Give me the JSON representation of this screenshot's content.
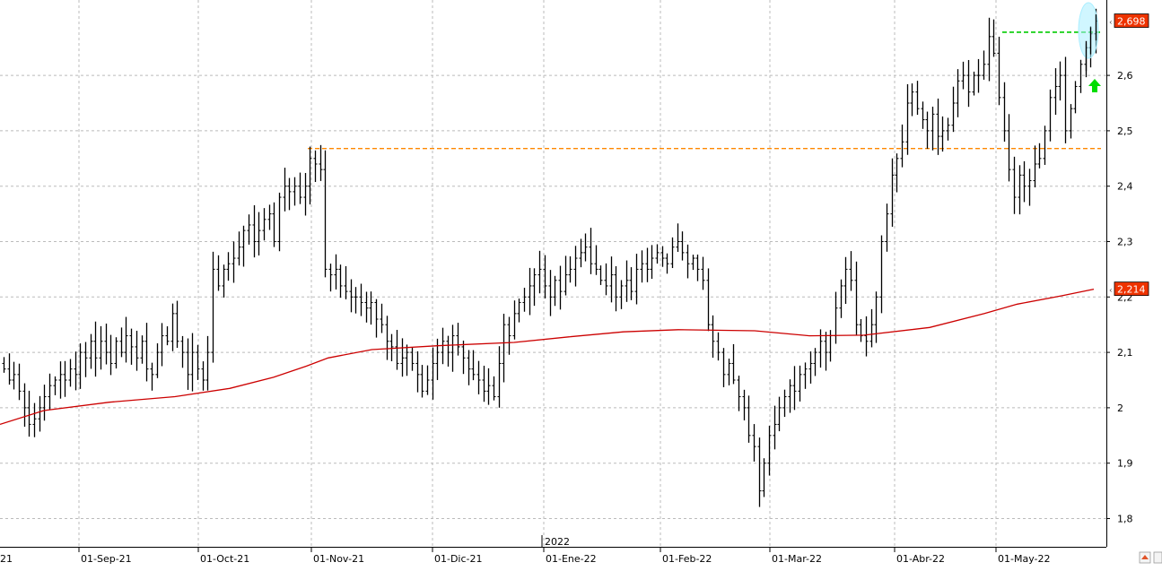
{
  "chart_data": {
    "type": "ohlc",
    "title": "",
    "xlabel": "",
    "ylabel": "",
    "ylim": [
      1.75,
      2.75
    ],
    "grid": true,
    "price_axis_side": "right",
    "y_ticks": [
      "1,8",
      "1,9",
      "2",
      "2,1",
      "2,2",
      "2,3",
      "2,4",
      "2,5",
      "2,6"
    ],
    "x_labels": [
      "01-Sep-21",
      "01-Oct-21",
      "01-Nov-21",
      "01-Dic-21",
      "01-Ene-22",
      "01-Feb-22",
      "01-Mar-22",
      "01-Abr-22",
      "01-May-22"
    ],
    "x_year_label": "2022",
    "start_partial_label": "21",
    "last_price": {
      "value": 2.698,
      "label": "2,698"
    },
    "ma_value": {
      "value": 2.214,
      "label": "2,214"
    },
    "resistance_green": 2.678,
    "resistance_orange": 2.468,
    "breakout_marker": "up-arrow",
    "series": [
      {
        "name": "",
        "kind": "ohlc",
        "closes": [
          2.07,
          2.05,
          2.06,
          2.03,
          2.0,
          1.97,
          1.98,
          2.0,
          2.02,
          2.04,
          2.05,
          2.06,
          2.05,
          2.07,
          2.06,
          2.1,
          2.09,
          2.12,
          2.09,
          2.12,
          2.1,
          2.08,
          2.12,
          2.1,
          2.13,
          2.11,
          2.09,
          2.12,
          2.07,
          2.06,
          2.1,
          2.13,
          2.12,
          2.17,
          2.12,
          2.1,
          2.06,
          2.1,
          2.07,
          2.05,
          2.1,
          2.25,
          2.22,
          2.25,
          2.26,
          2.27,
          2.29,
          2.32,
          2.33,
          2.3,
          2.32,
          2.34,
          2.35,
          2.3,
          2.38,
          2.4,
          2.39,
          2.4,
          2.38,
          2.4,
          2.45,
          2.44,
          2.43,
          2.25,
          2.24,
          2.25,
          2.22,
          2.21,
          2.2,
          2.2,
          2.19,
          2.18,
          2.19,
          2.16,
          2.15,
          2.12,
          2.11,
          2.08,
          2.09,
          2.1,
          2.08,
          2.06,
          2.03,
          2.05,
          2.08,
          2.1,
          2.12,
          2.1,
          2.13,
          2.11,
          2.09,
          2.07,
          2.06,
          2.05,
          2.03,
          2.04,
          2.02,
          2.08,
          2.15,
          2.13,
          2.17,
          2.19,
          2.2,
          2.22,
          2.24,
          2.25,
          2.22,
          2.2,
          2.23,
          2.21,
          2.24,
          2.25,
          2.27,
          2.28,
          2.29,
          2.26,
          2.25,
          2.23,
          2.22,
          2.24,
          2.2,
          2.22,
          2.23,
          2.21,
          2.25,
          2.26,
          2.25,
          2.27,
          2.28,
          2.27,
          2.26,
          2.29,
          2.3,
          2.28,
          2.26,
          2.27,
          2.25,
          2.23,
          2.15,
          2.12,
          2.1,
          2.06,
          2.08,
          2.05,
          2.02,
          2.0,
          1.95,
          1.93,
          1.85,
          1.9,
          1.95,
          1.97,
          2.0,
          2.02,
          2.04,
          2.03,
          2.06,
          2.07,
          2.08,
          2.1,
          2.12,
          2.1,
          2.13,
          2.18,
          2.22,
          2.25,
          2.23,
          2.15,
          2.13,
          2.12,
          2.15,
          2.2,
          2.3,
          2.35,
          2.42,
          2.45,
          2.48,
          2.55,
          2.57,
          2.54,
          2.52,
          2.5,
          2.53,
          2.49,
          2.5,
          2.51,
          2.55,
          2.59,
          2.6,
          2.57,
          2.6,
          2.6,
          2.62,
          2.67,
          2.64,
          2.56,
          2.5,
          2.43,
          2.38,
          2.42,
          2.4,
          2.41,
          2.44,
          2.45,
          2.5,
          2.56,
          2.58,
          2.6,
          2.5,
          2.54,
          2.58,
          2.62,
          2.65,
          2.675,
          2.698
        ]
      },
      {
        "name": "",
        "kind": "moving-average",
        "color": "#cc0000",
        "start": 1.97,
        "end": 2.214
      }
    ],
    "colors": {
      "bars": "#000000",
      "moving_average": "#cc0000",
      "last_price_badge": "#ee3300",
      "ma_badge": "#ee3300",
      "resistance_green": "#00cc00",
      "resistance_orange": "#ff8800",
      "highlight_ellipse": "#aaeeff",
      "grid": "#bbbbbb",
      "arrow": "#00dd00"
    }
  },
  "footer": {
    "icons": [
      "app-logo-icon",
      "flag-icon"
    ]
  }
}
